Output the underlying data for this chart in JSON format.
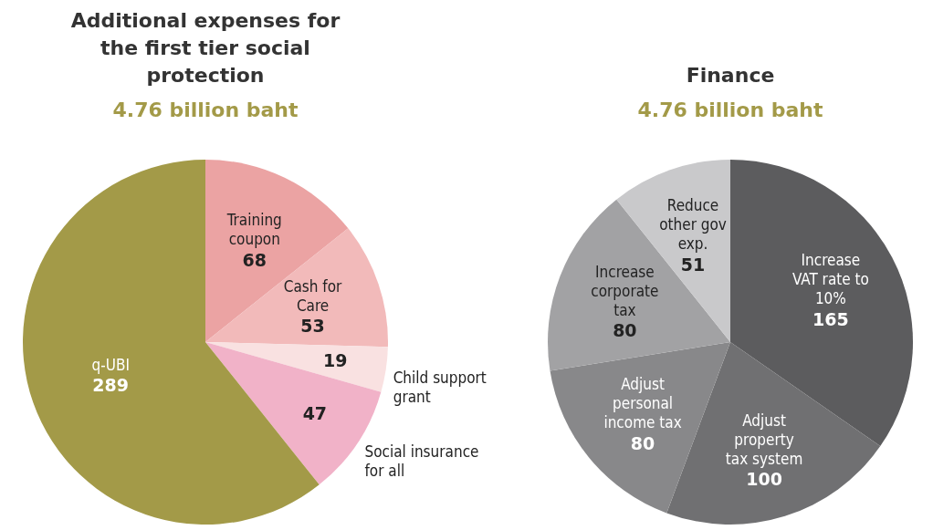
{
  "chart_data": [
    {
      "type": "pie",
      "title": "Additional expenses for the first tier social protection",
      "subtitle": "4.76 billion baht",
      "categories": [
        "Training coupon",
        "Cash for Care",
        "Child support grant",
        "Social insurance for all",
        "q-UBI"
      ],
      "values": [
        68,
        53,
        19,
        47,
        289
      ],
      "colors": [
        "#eba3a3",
        "#f2baba",
        "#f9e1e1",
        "#f1b2c8",
        "#a39a48"
      ],
      "data_labels": true
    },
    {
      "type": "pie",
      "title": "Finance",
      "subtitle": "4.76 billion baht",
      "categories": [
        "Increase VAT rate to 10%",
        "Adjust property tax system",
        "Adjust personal income tax",
        "Increase corporate tax",
        "Reduce other gov exp."
      ],
      "values": [
        165,
        100,
        80,
        80,
        51
      ],
      "colors": [
        "#5c5c5e",
        "#707072",
        "#88888a",
        "#a2a2a4",
        "#c9c9cb"
      ],
      "data_labels": true
    }
  ]
}
